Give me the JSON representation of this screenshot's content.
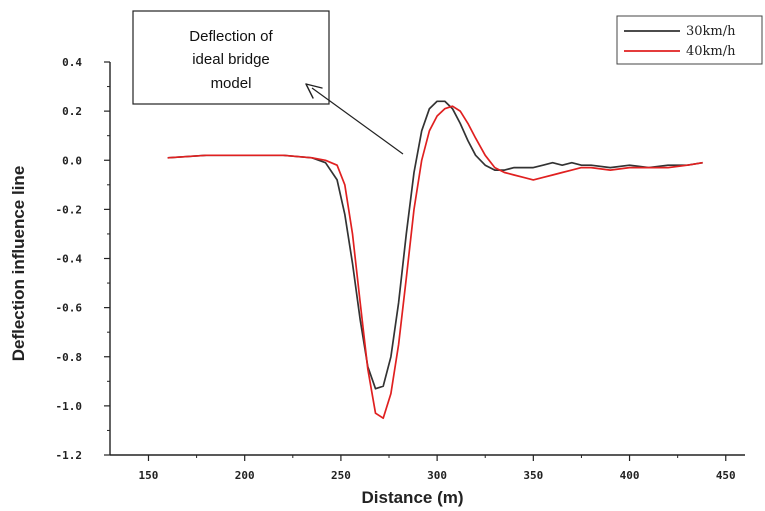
{
  "chart_data": {
    "type": "line",
    "title": "",
    "xlabel": "Distance (m)",
    "ylabel": "Deflection influence line",
    "xlim": [
      130,
      460
    ],
    "ylim": [
      -1.2,
      0.4
    ],
    "x_ticks": [
      150,
      200,
      250,
      300,
      350,
      400,
      450
    ],
    "y_ticks": [
      0.4,
      0.2,
      0.0,
      -0.2,
      -0.4,
      -0.6,
      -0.8,
      -1.0,
      -1.2
    ],
    "y_tick_labels": [
      "0.4",
      "0.2",
      "0.0",
      "-0.2",
      "-0.4",
      "-0.6",
      "-0.8",
      "-1.0",
      "-1.2"
    ],
    "grid": false,
    "legend_position": "top-right",
    "series": [
      {
        "name": "30km/h",
        "color": "#333333",
        "x": [
          160,
          180,
          200,
          220,
          235,
          242,
          248,
          252,
          256,
          260,
          264,
          268,
          272,
          276,
          280,
          284,
          288,
          292,
          296,
          300,
          304,
          308,
          312,
          316,
          320,
          325,
          330,
          335,
          340,
          345,
          350,
          355,
          360,
          365,
          370,
          375,
          380,
          390,
          400,
          410,
          420,
          430,
          438
        ],
        "y": [
          0.01,
          0.02,
          0.02,
          0.02,
          0.01,
          -0.01,
          -0.08,
          -0.22,
          -0.42,
          -0.65,
          -0.84,
          -0.93,
          -0.92,
          -0.8,
          -0.58,
          -0.3,
          -0.05,
          0.12,
          0.21,
          0.24,
          0.24,
          0.21,
          0.15,
          0.08,
          0.02,
          -0.02,
          -0.04,
          -0.04,
          -0.03,
          -0.03,
          -0.03,
          -0.02,
          -0.01,
          -0.02,
          -0.01,
          -0.02,
          -0.02,
          -0.03,
          -0.02,
          -0.03,
          -0.02,
          -0.02,
          -0.01
        ]
      },
      {
        "name": "40km/h",
        "color": "#e02020",
        "x": [
          160,
          180,
          200,
          220,
          235,
          242,
          248,
          252,
          256,
          260,
          264,
          268,
          272,
          276,
          280,
          284,
          288,
          292,
          296,
          300,
          304,
          308,
          312,
          316,
          320,
          325,
          330,
          335,
          340,
          345,
          350,
          355,
          360,
          365,
          370,
          375,
          380,
          390,
          400,
          410,
          420,
          430,
          438
        ],
        "y": [
          0.01,
          0.02,
          0.02,
          0.02,
          0.01,
          0.0,
          -0.02,
          -0.1,
          -0.3,
          -0.58,
          -0.85,
          -1.03,
          -1.05,
          -0.95,
          -0.75,
          -0.48,
          -0.2,
          0.0,
          0.12,
          0.18,
          0.21,
          0.22,
          0.2,
          0.15,
          0.09,
          0.02,
          -0.03,
          -0.05,
          -0.06,
          -0.07,
          -0.08,
          -0.07,
          -0.06,
          -0.05,
          -0.04,
          -0.03,
          -0.03,
          -0.04,
          -0.03,
          -0.03,
          -0.03,
          -0.02,
          -0.01
        ]
      }
    ],
    "annotations": [
      {
        "text_lines": [
          "Deflection of",
          "ideal bridge",
          "model"
        ]
      }
    ]
  }
}
